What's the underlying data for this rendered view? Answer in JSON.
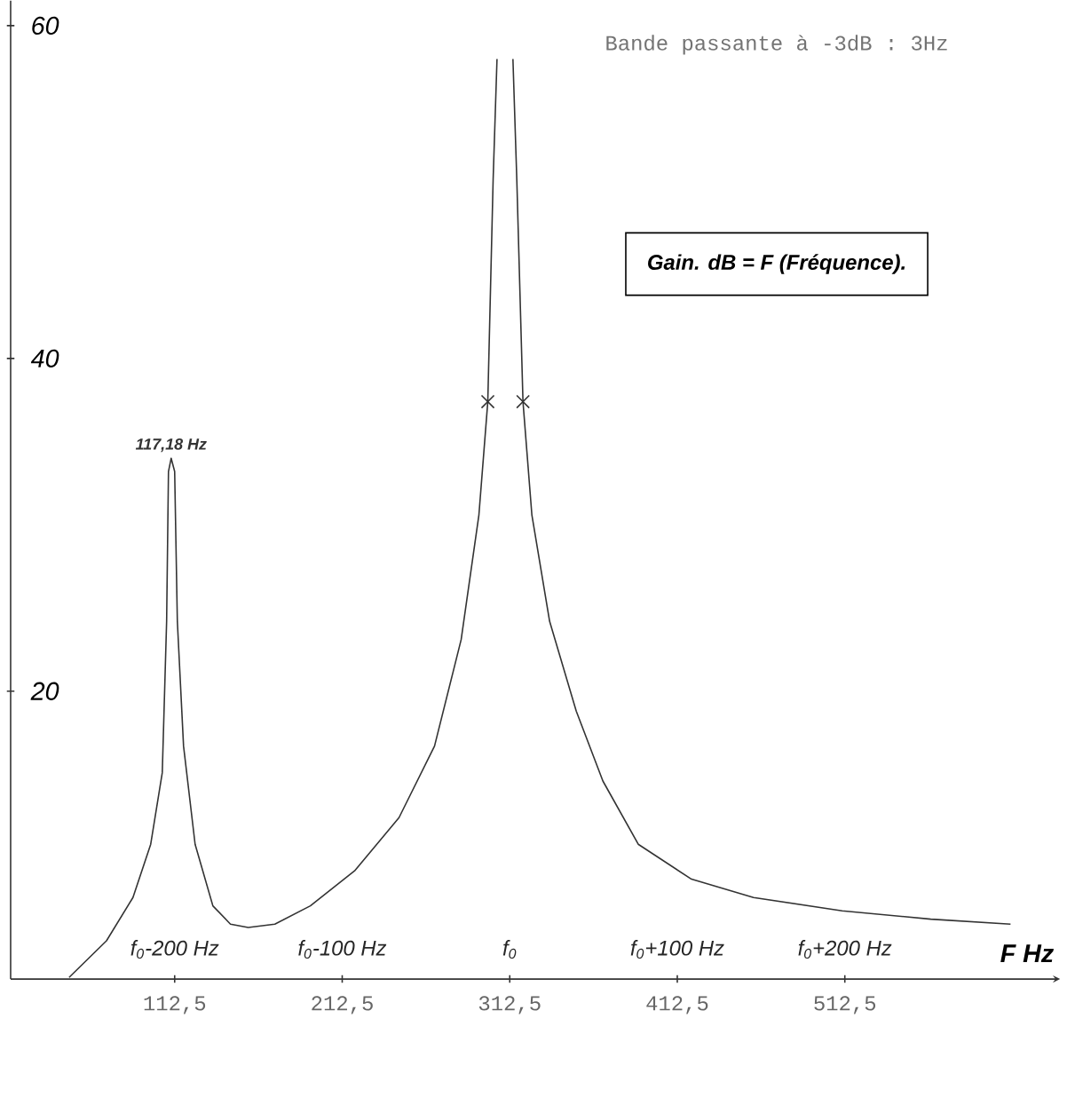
{
  "chart_data": {
    "type": "line",
    "title": "Gain. dB = F (Fréquence).",
    "xlabel": "F Hz",
    "xlim": [
      14.6,
      641
    ],
    "ylim": [
      2.7,
      61.5
    ],
    "xticks": [
      {
        "value": 112.5,
        "label": "112,5"
      },
      {
        "value": 212.5,
        "label": "212,5"
      },
      {
        "value": 312.5,
        "label": "312,5"
      },
      {
        "value": 412.5,
        "label": "412,5"
      },
      {
        "value": 512.5,
        "label": "512,5"
      }
    ],
    "yticks": [
      20,
      40,
      60
    ],
    "annotations": [
      "Bande passante à -3dB : 3Hz",
      {
        "text": "117,18 Hz",
        "x": 110.4,
        "y": 34.0
      },
      "f$_{0}$-200 Hz",
      "f$_{0}$-100 Hz",
      "f$_{0}$",
      "f$_{0}$+100 Hz",
      "f$_{0}$+200 Hz"
    ],
    "series": [
      {
        "color": "#333333",
        "marker": "none",
        "x": [
          49.5,
          71.8,
          87.6,
          98.2,
          105.1,
          107.7,
          108.8,
          110.4,
          112.5,
          114.1,
          117.8,
          124.7,
          135.3,
          145.8,
          156.4,
          172.3,
          193.5,
          219.9,
          246.4,
          267.6,
          283.5,
          294.1,
          299.4,
          302.6,
          304.9,
          309.5,
          314.4,
          316.7,
          320.4,
          325.7,
          336.3,
          352.2,
          368.1,
          389.2,
          421.0,
          458.0,
          510.9,
          563.8,
          611.4
        ],
        "values": [
          2.8,
          5.0,
          7.6,
          10.8,
          15.1,
          24.2,
          33.2,
          34.0,
          33.2,
          24.2,
          16.7,
          10.8,
          7.1,
          6.0,
          5.8,
          6.0,
          7.1,
          9.2,
          12.4,
          16.7,
          23.1,
          30.6,
          37.4,
          50.8,
          58.0,
          null,
          58.0,
          50.8,
          37.4,
          30.6,
          24.2,
          18.8,
          14.6,
          10.8,
          8.7,
          7.6,
          6.8,
          6.3,
          6.0
        ]
      },
      {
        "type": "scatter",
        "color": "#333333",
        "marker": "cross",
        "x": [
          299.4,
          320.4
        ],
        "values": [
          37.4,
          37.4
        ]
      }
    ]
  }
}
